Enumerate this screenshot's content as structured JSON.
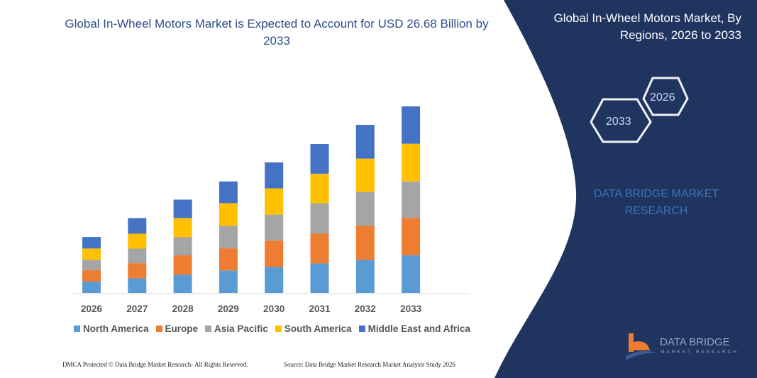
{
  "header": {
    "title": "Global In-Wheel Motors Market is Expected to Account for USD 26.68 Billion by 2033"
  },
  "side_panel": {
    "title": "Global In-Wheel Motors Market, By Regions, 2026 to 2033",
    "hex_labels": [
      "2026",
      "2033"
    ],
    "brand_text": "DATA BRIDGE MARKET RESEARCH",
    "logo_text": "DATA BRIDGE",
    "logo_subtext": "MARKET RESEARCH",
    "panel_color": "#1f3560"
  },
  "footer": {
    "left": "DMCA Protected © Data Bridge Market Research-  All Rights Reserved.",
    "right": "Source: Data Bridge Market Research  Market Analysis Study 2026"
  },
  "chart_data": {
    "type": "bar",
    "stacked": true,
    "title": "Global In-Wheel Motors Market is Expected to Account for USD 26.68 Billion by 2033",
    "categories": [
      "2026",
      "2027",
      "2028",
      "2029",
      "2030",
      "2031",
      "2032",
      "2033"
    ],
    "series": [
      {
        "name": "North America",
        "color": "#5b9bd5",
        "values": [
          1.62,
          2.09,
          2.6,
          3.21,
          3.71,
          4.22,
          4.73,
          5.37
        ]
      },
      {
        "name": "Europe",
        "color": "#ed7d31",
        "values": [
          1.62,
          2.16,
          2.77,
          3.17,
          3.78,
          4.25,
          4.86,
          5.37
        ]
      },
      {
        "name": "Asia Pacific",
        "color": "#a5a5a5",
        "values": [
          1.49,
          2.09,
          2.6,
          3.21,
          3.71,
          4.36,
          4.86,
          5.2
        ]
      },
      {
        "name": "South America",
        "color": "#ffc000",
        "values": [
          1.62,
          2.13,
          2.74,
          3.24,
          3.75,
          4.22,
          4.76,
          5.4
        ]
      },
      {
        "name": "Middle East and Africa",
        "color": "#4472c4",
        "values": [
          1.65,
          2.23,
          2.63,
          3.11,
          3.71,
          4.25,
          4.83,
          5.34
        ]
      }
    ],
    "xlabel": "",
    "ylabel": "",
    "grid": false,
    "legend": "bottom"
  }
}
